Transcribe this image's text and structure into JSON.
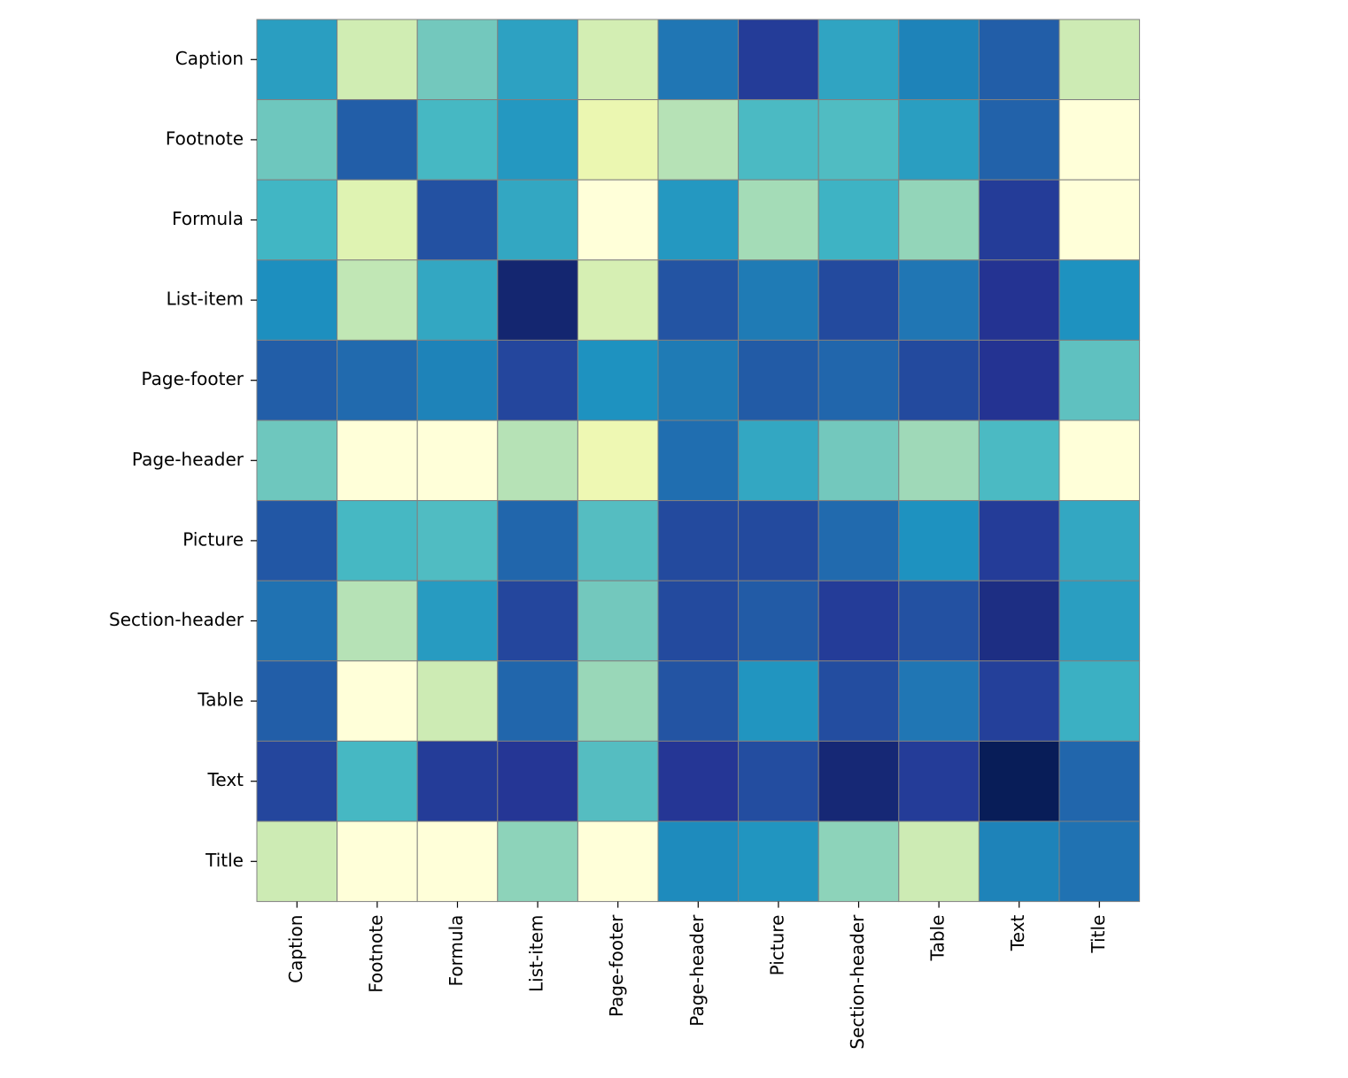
{
  "chart_data": {
    "type": "heatmap",
    "title": "",
    "xlabel": "",
    "ylabel": "",
    "rows": [
      "Caption",
      "Footnote",
      "Formula",
      "List-item",
      "Page-footer",
      "Page-header",
      "Picture",
      "Section-header",
      "Table",
      "Text",
      "Title"
    ],
    "columns": [
      "Caption",
      "Footnote",
      "Formula",
      "List-item",
      "Page-footer",
      "Page-header",
      "Picture",
      "Section-header",
      "Table",
      "Text",
      "Title"
    ],
    "value_range": [
      0,
      1
    ],
    "colormap": "YlGnBu",
    "colormap_stops": [
      "#ffffd9",
      "#edf8b1",
      "#c7e9b4",
      "#7fcdbb",
      "#41b6c4",
      "#1d91c0",
      "#225ea8",
      "#253494",
      "#081d58"
    ],
    "values": [
      [
        0.58,
        0.22,
        0.4,
        0.57,
        0.21,
        0.69,
        0.85,
        0.56,
        0.66,
        0.75,
        0.23
      ],
      [
        0.41,
        0.75,
        0.49,
        0.6,
        0.13,
        0.28,
        0.48,
        0.47,
        0.58,
        0.74,
        0.0
      ],
      [
        0.5,
        0.17,
        0.79,
        0.55,
        0.0,
        0.6,
        0.31,
        0.51,
        0.34,
        0.85,
        0.0
      ],
      [
        0.63,
        0.26,
        0.55,
        0.95,
        0.2,
        0.78,
        0.68,
        0.81,
        0.69,
        0.88,
        0.62
      ],
      [
        0.75,
        0.72,
        0.66,
        0.82,
        0.62,
        0.68,
        0.76,
        0.73,
        0.81,
        0.88,
        0.44
      ],
      [
        0.41,
        0.0,
        0.0,
        0.28,
        0.12,
        0.71,
        0.55,
        0.4,
        0.32,
        0.48,
        0.0
      ],
      [
        0.77,
        0.49,
        0.47,
        0.73,
        0.46,
        0.81,
        0.81,
        0.72,
        0.62,
        0.85,
        0.55
      ],
      [
        0.7,
        0.28,
        0.59,
        0.82,
        0.4,
        0.81,
        0.76,
        0.85,
        0.79,
        0.91,
        0.58
      ],
      [
        0.75,
        0.0,
        0.23,
        0.73,
        0.33,
        0.78,
        0.61,
        0.8,
        0.69,
        0.84,
        0.52
      ],
      [
        0.82,
        0.49,
        0.85,
        0.87,
        0.46,
        0.87,
        0.8,
        0.94,
        0.85,
        1.0,
        0.73
      ],
      [
        0.23,
        0.0,
        0.0,
        0.35,
        0.0,
        0.64,
        0.61,
        0.35,
        0.23,
        0.66,
        0.7
      ]
    ]
  }
}
